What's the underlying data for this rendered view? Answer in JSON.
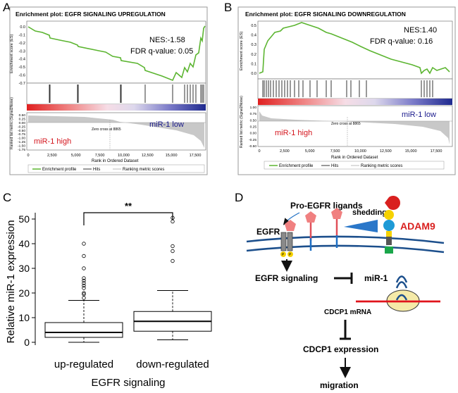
{
  "panels": {
    "a": "A",
    "b": "B",
    "c": "C",
    "d": "D"
  },
  "panel_a": {
    "title": "Enrichment plot: EGFR SIGNALING UPREGULATION",
    "nes": "NES:-1.58",
    "fdr": "FDR q-value: 0.05",
    "ylabel_es": "Enrichment score (ES)",
    "ylabel_metric": "Ranked list metric (Signal2Noise)",
    "xlabel": "Rank in Ordered Dataset",
    "zero_cross": "Zero cross at 8865",
    "low_label": "miR-1 low",
    "high_label": "miR-1 high",
    "es_ticks": [
      "0.0",
      "-0.1",
      "-0.2",
      "-0.3",
      "-0.4",
      "-0.5",
      "-0.6",
      "-0.7"
    ],
    "metric_ticks": [
      "0.50",
      "0.25",
      "0.00",
      "-0.25",
      "-0.50",
      "-0.75",
      "-1.00",
      "-1.25",
      "-1.50",
      "-1.75"
    ],
    "x_ticks": [
      "0",
      "2,500",
      "5,000",
      "7,500",
      "10,000",
      "12,500",
      "15,000",
      "17,500"
    ],
    "legend": [
      "Enrichment profile",
      "Hits",
      "Ranking metric scores"
    ]
  },
  "panel_b": {
    "title": "Enrichment plot: EGFR SIGNALING DOWNREGULATION",
    "nes": "NES:1.40",
    "fdr": "FDR q-value: 0.16",
    "ylabel_es": "Enrichment score (ES)",
    "ylabel_metric": "Ranked list metric (Signal2Noise)",
    "xlabel": "Rank in Ordered Dataset",
    "zero_cross": "Zero cross at 8865",
    "low_label": "miR-1 low",
    "high_label": "miR-1 high",
    "es_ticks": [
      "0.5",
      "0.4",
      "0.3",
      "0.2",
      "0.1",
      "0.0"
    ],
    "metric_ticks": [
      "1.00",
      "0.75",
      "0.50",
      "0.25",
      "0.00",
      "-0.25",
      "-0.50"
    ],
    "x_ticks": [
      "0",
      "2,500",
      "5,000",
      "7,500",
      "10,000",
      "12,500",
      "15,000",
      "17,500"
    ],
    "legend": [
      "Enrichment profile",
      "Hits",
      "Ranking metric scores"
    ]
  },
  "chart_data": {
    "type": "box",
    "ylabel": "Relative miR-1 expression",
    "xlabel": "EGFR signaling",
    "ylim": [
      0,
      52
    ],
    "yticks": [
      0,
      10,
      20,
      30,
      40,
      50
    ],
    "significance": "**",
    "groups": [
      {
        "name": "up-regulated",
        "min": 0,
        "q1": 2,
        "median": 4,
        "q3": 8,
        "max": 17,
        "outliers": [
          18,
          19.5,
          20,
          22,
          23,
          24,
          25,
          26,
          30,
          35,
          40
        ]
      },
      {
        "name": "down-regulated",
        "min": 1,
        "q1": 4.5,
        "median": 8.5,
        "q3": 12.5,
        "max": 21,
        "outliers": [
          33,
          37,
          39,
          49,
          50.5
        ]
      }
    ]
  },
  "panel_d": {
    "pro_egfr": "Pro-EGFR ligands",
    "shedding": "shedding",
    "adam9": "ADAM9",
    "egfr": "EGFR",
    "p1": "P",
    "p2": "P",
    "egfr_signaling": "EGFR signaling",
    "mir1": "miR-1",
    "cdcp1_mrna": "CDCP1 mRNA",
    "cdcp1_expr": "CDCP1 expression",
    "migration": "migration"
  },
  "colors": {
    "es_line": "#5cb531",
    "red_text": "#d4141c",
    "blue_text": "#1a1a8c",
    "membrane": "#1c4f8c",
    "mrna": "#e0141c",
    "adam_red": "#d9201f",
    "adam_yellow": "#f6d200",
    "adam_blue": "#1e9ad6",
    "adam_green": "#1aa64a",
    "ligand": "#f08080"
  }
}
